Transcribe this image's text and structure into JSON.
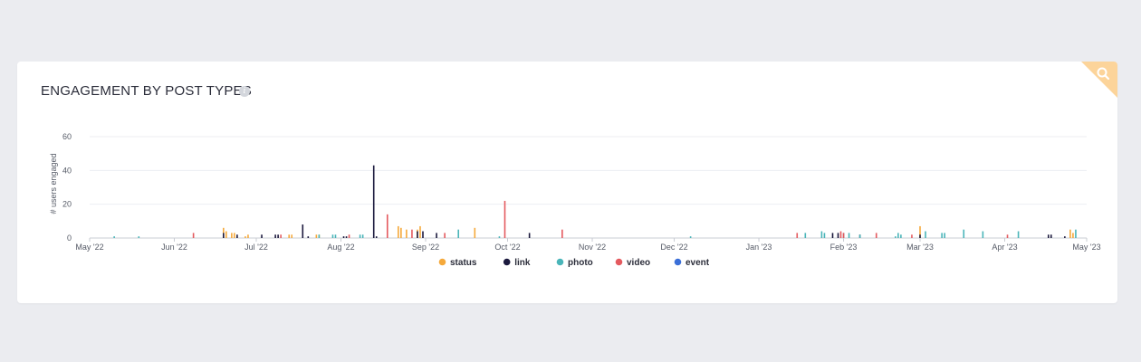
{
  "card": {
    "title": "ENGAGEMENT BY POST TYPES",
    "info_icon": "info-icon",
    "corner_icon": "magnifier-icon",
    "corner_color": "#fcd49a"
  },
  "chart_data": {
    "type": "bar",
    "ylabel": "# users engaged",
    "xlabel": "",
    "ylim": [
      0,
      60
    ],
    "yticks": [
      0,
      20,
      40,
      60
    ],
    "xlim": [
      "2022-05-01",
      "2023-05-01"
    ],
    "xticks": [
      {
        "date": "2022-05-01",
        "label": "May '22"
      },
      {
        "date": "2022-06-01",
        "label": "Jun '22"
      },
      {
        "date": "2022-07-01",
        "label": "Jul '22"
      },
      {
        "date": "2022-08-01",
        "label": "Aug '22"
      },
      {
        "date": "2022-09-01",
        "label": "Sep '22"
      },
      {
        "date": "2022-10-01",
        "label": "Oct '22"
      },
      {
        "date": "2022-11-01",
        "label": "Nov '22"
      },
      {
        "date": "2022-12-01",
        "label": "Dec '22"
      },
      {
        "date": "2023-01-01",
        "label": "Jan '23"
      },
      {
        "date": "2023-02-01",
        "label": "Feb '23"
      },
      {
        "date": "2023-03-01",
        "label": "Mar '23"
      },
      {
        "date": "2023-04-01",
        "label": "Apr '23"
      },
      {
        "date": "2023-05-01",
        "label": "May '23"
      }
    ],
    "grid": true,
    "legend_position": "bottom",
    "series": [
      {
        "name": "status",
        "color": "#f5a93b",
        "points": [
          [
            "2022-06-19",
            6
          ],
          [
            "2022-06-20",
            4
          ],
          [
            "2022-06-22",
            3
          ],
          [
            "2022-06-23",
            3
          ],
          [
            "2022-06-27",
            1
          ],
          [
            "2022-06-28",
            2
          ],
          [
            "2022-07-13",
            2
          ],
          [
            "2022-07-14",
            2
          ],
          [
            "2022-07-23",
            2
          ],
          [
            "2022-07-24",
            2
          ],
          [
            "2022-08-22",
            7
          ],
          [
            "2022-08-23",
            6
          ],
          [
            "2022-08-25",
            5
          ],
          [
            "2022-08-29",
            5
          ],
          [
            "2022-08-30",
            7
          ],
          [
            "2022-09-19",
            6
          ],
          [
            "2023-03-01",
            7
          ],
          [
            "2023-04-25",
            5
          ],
          [
            "2023-04-26",
            3
          ]
        ]
      },
      {
        "name": "link",
        "color": "#1c1a3e",
        "points": [
          [
            "2022-06-19",
            3
          ],
          [
            "2022-06-24",
            2
          ],
          [
            "2022-07-03",
            2
          ],
          [
            "2022-07-08",
            2
          ],
          [
            "2022-07-09",
            2
          ],
          [
            "2022-07-18",
            8
          ],
          [
            "2022-07-20",
            1
          ],
          [
            "2022-08-02",
            1
          ],
          [
            "2022-08-03",
            1
          ],
          [
            "2022-08-13",
            43
          ],
          [
            "2022-08-14",
            1
          ],
          [
            "2022-08-29",
            4
          ],
          [
            "2022-08-31",
            4
          ],
          [
            "2022-09-05",
            3
          ],
          [
            "2022-10-09",
            3
          ],
          [
            "2023-01-28",
            3
          ],
          [
            "2023-01-30",
            3
          ],
          [
            "2023-02-07",
            2
          ],
          [
            "2023-03-01",
            2
          ],
          [
            "2023-04-17",
            2
          ],
          [
            "2023-04-18",
            2
          ],
          [
            "2023-04-23",
            1
          ]
        ]
      },
      {
        "name": "photo",
        "color": "#4ab5b9",
        "points": [
          [
            "2022-05-10",
            1
          ],
          [
            "2022-05-19",
            1
          ],
          [
            "2022-07-24",
            2
          ],
          [
            "2022-07-29",
            2
          ],
          [
            "2022-07-30",
            2
          ],
          [
            "2022-08-08",
            2
          ],
          [
            "2022-08-09",
            2
          ],
          [
            "2022-09-13",
            5
          ],
          [
            "2022-09-28",
            1
          ],
          [
            "2022-12-07",
            1
          ],
          [
            "2023-01-18",
            3
          ],
          [
            "2023-01-24",
            4
          ],
          [
            "2023-01-25",
            3
          ],
          [
            "2023-02-01",
            3
          ],
          [
            "2023-02-03",
            3
          ],
          [
            "2023-02-07",
            2
          ],
          [
            "2023-02-20",
            1
          ],
          [
            "2023-02-21",
            3
          ],
          [
            "2023-02-22",
            2
          ],
          [
            "2023-03-03",
            4
          ],
          [
            "2023-03-09",
            3
          ],
          [
            "2023-03-10",
            3
          ],
          [
            "2023-03-17",
            5
          ],
          [
            "2023-03-24",
            4
          ],
          [
            "2023-04-06",
            4
          ],
          [
            "2023-04-27",
            5
          ]
        ]
      },
      {
        "name": "video",
        "color": "#e45a5f",
        "points": [
          [
            "2022-06-08",
            3
          ],
          [
            "2022-07-10",
            2
          ],
          [
            "2022-08-04",
            2
          ],
          [
            "2022-08-18",
            14
          ],
          [
            "2022-08-27",
            5
          ],
          [
            "2022-09-08",
            3
          ],
          [
            "2022-09-30",
            22
          ],
          [
            "2022-10-21",
            5
          ],
          [
            "2023-01-15",
            3
          ],
          [
            "2023-01-31",
            4
          ],
          [
            "2023-02-01",
            3
          ],
          [
            "2023-02-13",
            3
          ],
          [
            "2023-02-26",
            2
          ],
          [
            "2023-04-02",
            2
          ]
        ]
      },
      {
        "name": "event",
        "color": "#3b6fd8",
        "points": []
      }
    ]
  }
}
